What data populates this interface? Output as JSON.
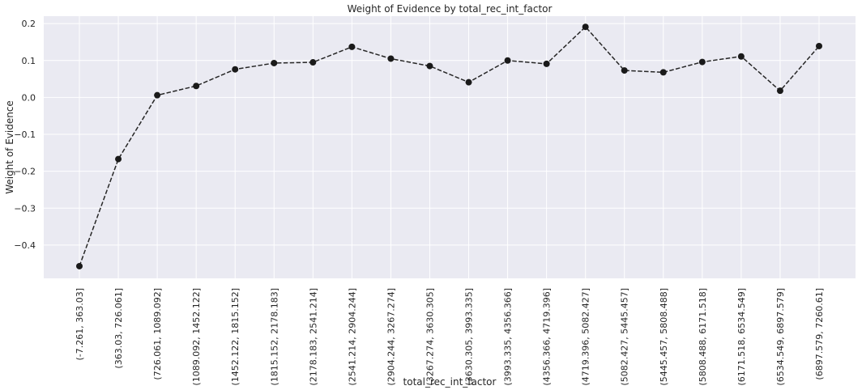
{
  "chart_data": {
    "type": "line",
    "title": "Weight of Evidence by total_rec_int_factor",
    "xlabel": "total_rec_int_factor",
    "ylabel": "Weight of Evidence",
    "ylim": [
      -0.49,
      0.22
    ],
    "yticks": [
      -0.4,
      -0.3,
      -0.2,
      -0.1,
      0.0,
      0.1,
      0.2
    ],
    "ytick_labels": [
      "−0.4",
      "−0.3",
      "−0.2",
      "−0.1",
      "0.0",
      "0.1",
      "0.2"
    ],
    "grid": true,
    "line_style": "dashed",
    "marker": "circle",
    "colors": {
      "background": "#eaeaf2",
      "grid": "#ffffff",
      "line": "#262626",
      "marker": "#1a1a1a"
    },
    "categories": [
      "(-7.261, 363.03]",
      "(363.03, 726.061]",
      "(726.061, 1089.092]",
      "(1089.092, 1452.122]",
      "(1452.122, 1815.152]",
      "(1815.152, 2178.183]",
      "(2178.183, 2541.214]",
      "(2541.214, 2904.244]",
      "(2904.244, 3267.274]",
      "(3267.274, 3630.305]",
      "(3630.305, 3993.335]",
      "(3993.335, 4356.366]",
      "(4356.366, 4719.396]",
      "(4719.396, 5082.427]",
      "(5082.427, 5445.457]",
      "(5445.457, 5808.488]",
      "(5808.488, 6171.518]",
      "(6171.518, 6534.549]",
      "(6534.549, 6897.579]",
      "(6897.579, 7260.61]"
    ],
    "values": [
      -0.457,
      -0.167,
      0.006,
      0.031,
      0.076,
      0.093,
      0.095,
      0.137,
      0.105,
      0.085,
      0.041,
      0.1,
      0.091,
      0.191,
      0.073,
      0.068,
      0.096,
      0.111,
      0.018,
      0.139
    ]
  }
}
